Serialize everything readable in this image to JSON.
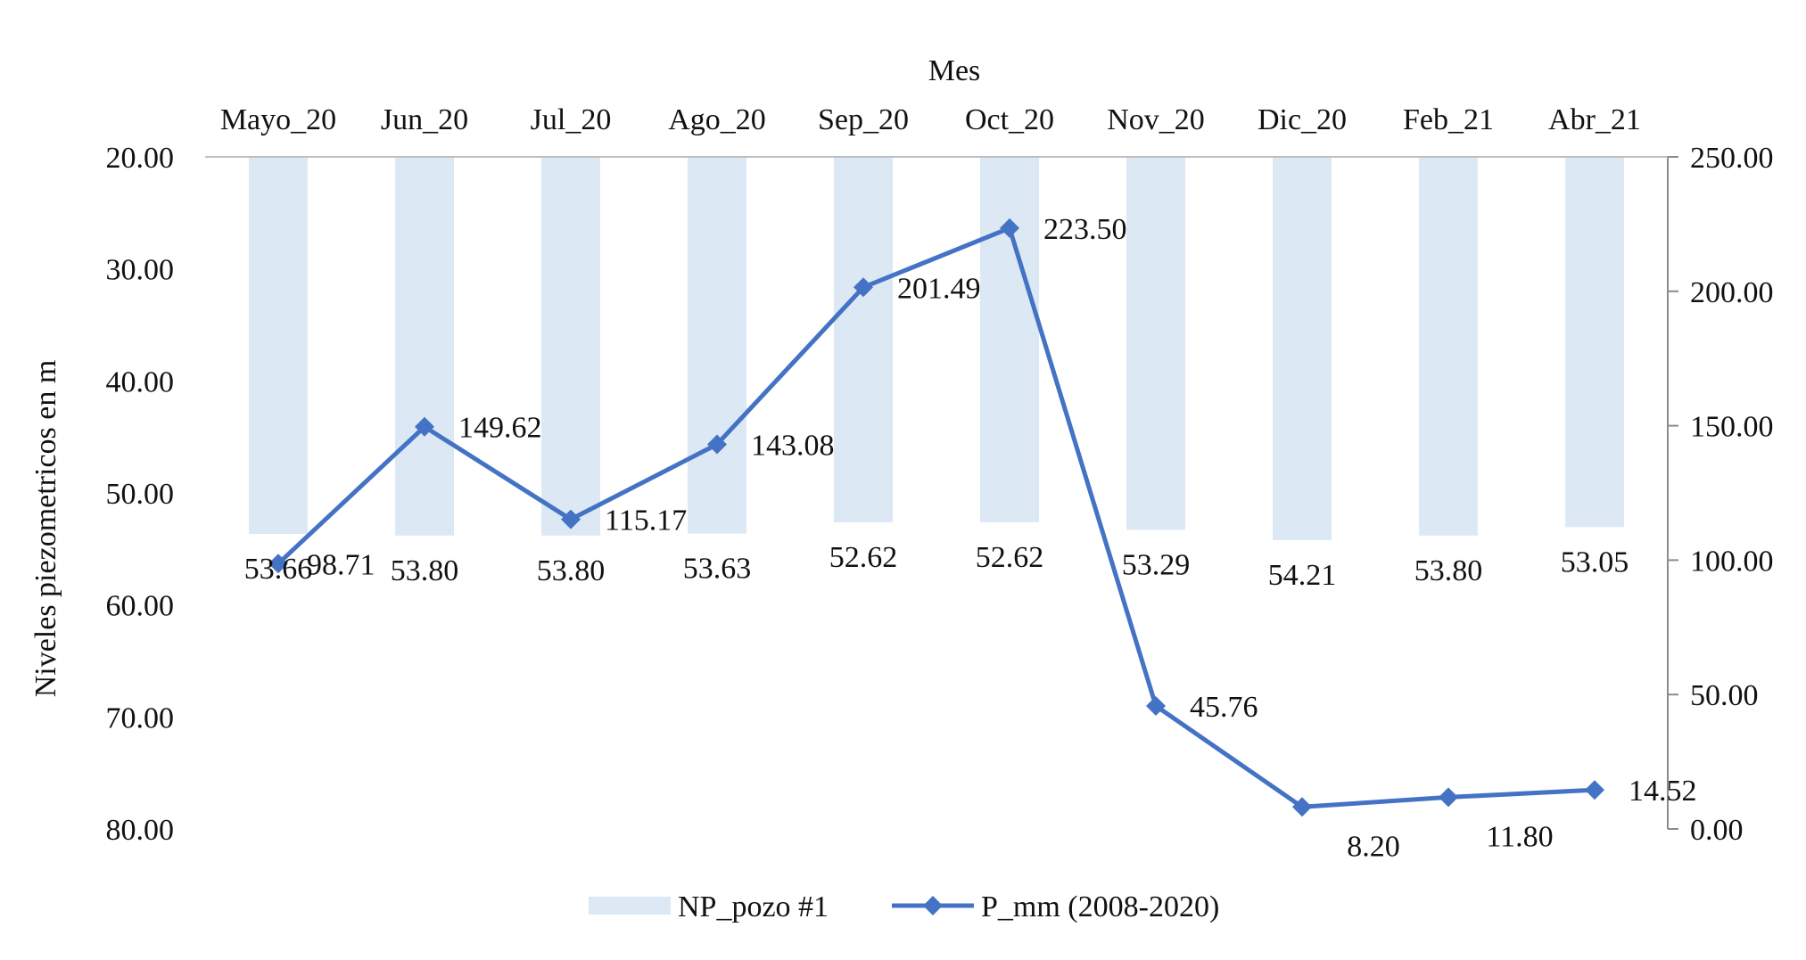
{
  "chart_data": {
    "type": "bar+line",
    "top_axis_label": "Mes",
    "ylabel": "Niveles piezometricos en m",
    "categories": [
      "Mayo_20",
      "Jun_20",
      "Jul_20",
      "Ago_20",
      "Sep_20",
      "Oct_20",
      "Nov_20",
      "Dic_20",
      "Feb_21",
      "Abr_21"
    ],
    "left_axis": {
      "range": [
        20,
        80
      ],
      "inverted": true,
      "ticks": [
        "20.00",
        "30.00",
        "40.00",
        "50.00",
        "60.00",
        "70.00",
        "80.00"
      ]
    },
    "right_axis": {
      "range": [
        0,
        250
      ],
      "ticks": [
        "0.00",
        "50.00",
        "100.00",
        "150.00",
        "200.00",
        "250.00"
      ]
    },
    "series": [
      {
        "name": "NP_pozo #1",
        "type": "bar",
        "axis": "left",
        "color": "#dde8f5",
        "values": [
          53.66,
          53.8,
          53.8,
          53.63,
          52.62,
          52.62,
          53.29,
          54.21,
          53.8,
          53.05
        ],
        "labels": [
          "53.66",
          "53.80",
          "53.80",
          "53.63",
          "52.62",
          "52.62",
          "53.29",
          "54.21",
          "53.80",
          "53.05"
        ]
      },
      {
        "name": "P_mm (2008-2020)",
        "type": "line",
        "axis": "right",
        "marker": "diamond",
        "color": "#4472c4",
        "values": [
          98.71,
          149.62,
          115.17,
          143.08,
          201.49,
          223.5,
          45.76,
          8.2,
          11.8,
          14.52
        ],
        "labels": [
          "98.71",
          "149.62",
          "115.17",
          "143.08",
          "201.49",
          "223.50",
          "45.76",
          "8.20",
          "11.80",
          "14.52"
        ]
      }
    ],
    "legend": {
      "placement": "bottom"
    },
    "grid": false
  }
}
